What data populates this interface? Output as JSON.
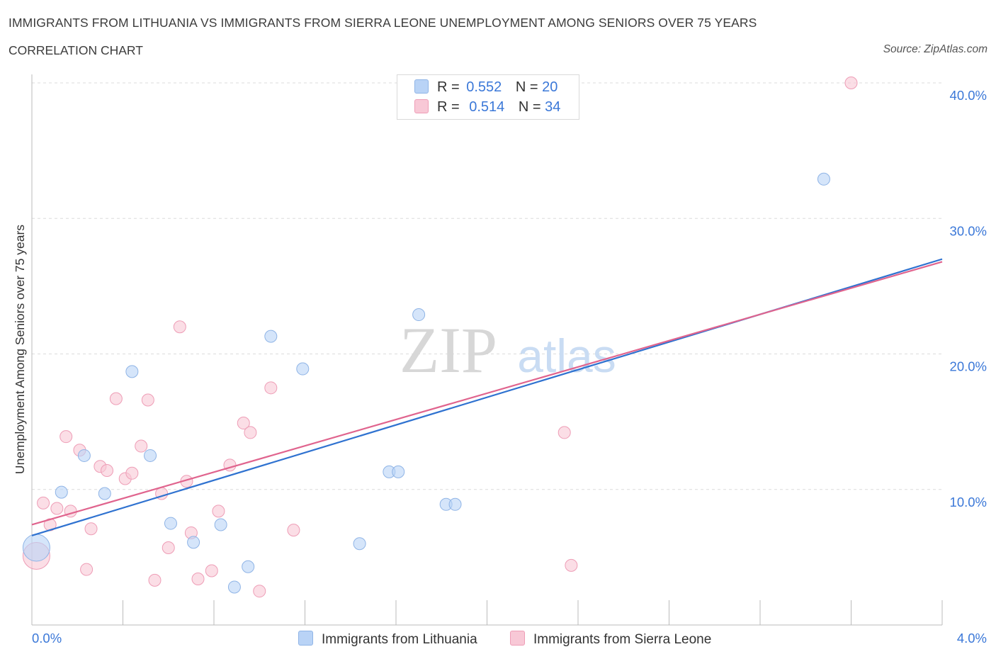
{
  "title": "IMMIGRANTS FROM LITHUANIA VS IMMIGRANTS FROM SIERRA LEONE UNEMPLOYMENT AMONG SENIORS OVER 75 YEARS",
  "subtitle": "CORRELATION CHART",
  "source": "Source: ZipAtlas.com",
  "watermark": {
    "zip": "ZIP",
    "atlas": "atlas"
  },
  "legend_top": {
    "series1": {
      "r_label": "R =",
      "r_value": "0.552",
      "n_label": "N =",
      "n_value": "20"
    },
    "series2": {
      "r_label": "R =",
      "r_value": "0.514",
      "n_label": "N =",
      "n_value": "34"
    }
  },
  "legend_bottom": {
    "series1": "Immigrants from Lithuania",
    "series2": "Immigrants from Sierra Leone"
  },
  "colors": {
    "blue_fill": "#b9d3f6",
    "blue_stroke": "#8fb4e6",
    "blue_line": "#2f72d0",
    "pink_fill": "#f8c8d6",
    "pink_stroke": "#ee9db6",
    "pink_line": "#e0648e",
    "tick_text": "#3b78d8",
    "grid": "#dcdcdc"
  },
  "chart_data": {
    "type": "scatter",
    "title": "IMMIGRANTS FROM LITHUANIA VS IMMIGRANTS FROM SIERRA LEONE UNEMPLOYMENT AMONG SENIORS OVER 75 YEARS",
    "xlabel": "",
    "ylabel": "Unemployment Among Seniors over 75 years",
    "xlim": [
      0,
      4.0
    ],
    "ylim": [
      0,
      40
    ],
    "x_tick_labels": [
      "0.0%",
      "4.0%"
    ],
    "y_ticks": [
      10,
      20,
      30,
      40
    ],
    "y_tick_labels": [
      "10.0%",
      "20.0%",
      "30.0%",
      "40.0%"
    ],
    "series": [
      {
        "name": "Immigrants from Lithuania",
        "color": "blue",
        "trend": {
          "x": [
            0,
            4.0
          ],
          "y": [
            6.6,
            27.0
          ]
        },
        "points": [
          {
            "x": 0.02,
            "y": 5.7,
            "big": true
          },
          {
            "x": 0.13,
            "y": 9.8
          },
          {
            "x": 0.23,
            "y": 12.5
          },
          {
            "x": 0.32,
            "y": 9.7
          },
          {
            "x": 0.44,
            "y": 18.7
          },
          {
            "x": 0.52,
            "y": 12.5
          },
          {
            "x": 0.61,
            "y": 7.5
          },
          {
            "x": 0.71,
            "y": 6.1
          },
          {
            "x": 0.83,
            "y": 7.4
          },
          {
            "x": 0.89,
            "y": 2.8
          },
          {
            "x": 0.95,
            "y": 4.3
          },
          {
            "x": 1.05,
            "y": 21.3
          },
          {
            "x": 1.19,
            "y": 18.9
          },
          {
            "x": 1.44,
            "y": 6.0
          },
          {
            "x": 1.57,
            "y": 11.3
          },
          {
            "x": 1.61,
            "y": 11.3
          },
          {
            "x": 1.7,
            "y": 22.9
          },
          {
            "x": 1.82,
            "y": 8.9
          },
          {
            "x": 1.86,
            "y": 8.9
          },
          {
            "x": 3.48,
            "y": 32.9
          }
        ]
      },
      {
        "name": "Immigrants from Sierra Leone",
        "color": "pink",
        "trend": {
          "x": [
            0,
            4.0
          ],
          "y": [
            7.4,
            26.8
          ]
        },
        "points": [
          {
            "x": 0.02,
            "y": 5.1,
            "big": true
          },
          {
            "x": 0.05,
            "y": 9.0
          },
          {
            "x": 0.08,
            "y": 7.4
          },
          {
            "x": 0.11,
            "y": 8.6
          },
          {
            "x": 0.15,
            "y": 13.9
          },
          {
            "x": 0.17,
            "y": 8.4
          },
          {
            "x": 0.21,
            "y": 12.9
          },
          {
            "x": 0.24,
            "y": 4.1
          },
          {
            "x": 0.26,
            "y": 7.1
          },
          {
            "x": 0.3,
            "y": 11.7
          },
          {
            "x": 0.33,
            "y": 11.4
          },
          {
            "x": 0.37,
            "y": 16.7
          },
          {
            "x": 0.41,
            "y": 10.8
          },
          {
            "x": 0.44,
            "y": 11.2
          },
          {
            "x": 0.48,
            "y": 13.2
          },
          {
            "x": 0.51,
            "y": 16.6
          },
          {
            "x": 0.54,
            "y": 3.3
          },
          {
            "x": 0.57,
            "y": 9.7
          },
          {
            "x": 0.6,
            "y": 5.7
          },
          {
            "x": 0.65,
            "y": 22.0
          },
          {
            "x": 0.68,
            "y": 10.6
          },
          {
            "x": 0.7,
            "y": 6.8
          },
          {
            "x": 0.73,
            "y": 3.4
          },
          {
            "x": 0.79,
            "y": 4.0
          },
          {
            "x": 0.82,
            "y": 8.4
          },
          {
            "x": 0.87,
            "y": 11.8
          },
          {
            "x": 0.93,
            "y": 14.9
          },
          {
            "x": 0.96,
            "y": 14.2
          },
          {
            "x": 1.0,
            "y": 2.5
          },
          {
            "x": 1.05,
            "y": 17.5
          },
          {
            "x": 1.15,
            "y": 7.0
          },
          {
            "x": 2.34,
            "y": 14.2
          },
          {
            "x": 2.37,
            "y": 4.4
          },
          {
            "x": 3.6,
            "y": 40.0
          }
        ]
      }
    ]
  }
}
